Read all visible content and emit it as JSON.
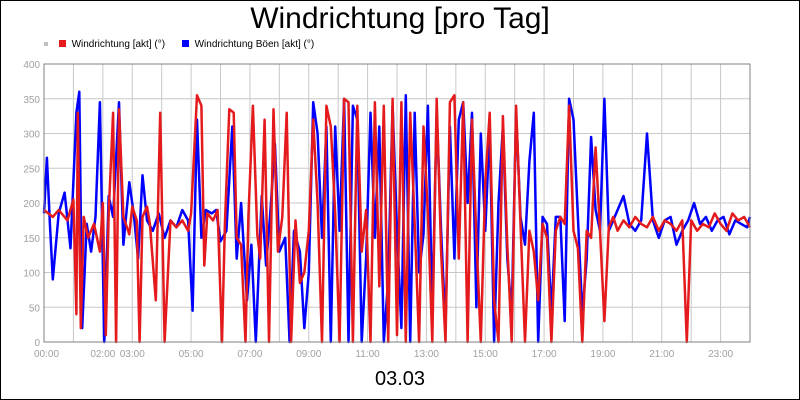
{
  "chart_data": {
    "type": "line",
    "title": "Windrichtung [pro Tag]",
    "xlabel": "03.03",
    "ylabel": "",
    "ylim": [
      0,
      400
    ],
    "yticks": [
      0,
      50,
      100,
      150,
      200,
      250,
      300,
      350,
      400
    ],
    "xlim": [
      "00:00",
      "24:00"
    ],
    "xtick_labels": [
      "00:00",
      "02:00",
      "03:00",
      "05:00",
      "07:00",
      "09:00",
      "11:00",
      "13:00",
      "15:00",
      "17:00",
      "19:00",
      "21:00",
      "23:00"
    ],
    "grid": true,
    "legend_placement": "top-left",
    "series": [
      {
        "name": "Windrichtung [akt] (°)",
        "color": "#e41a1c",
        "values": [
          [
            0.0,
            190
          ],
          [
            0.3,
            180
          ],
          [
            0.5,
            190
          ],
          [
            0.8,
            175
          ],
          [
            1.0,
            205
          ],
          [
            1.1,
            40
          ],
          [
            1.15,
            330
          ],
          [
            1.25,
            20
          ],
          [
            1.35,
            180
          ],
          [
            1.5,
            150
          ],
          [
            1.7,
            170
          ],
          [
            1.9,
            130
          ],
          [
            2.0,
            200
          ],
          [
            2.1,
            10
          ],
          [
            2.2,
            185
          ],
          [
            2.35,
            330
          ],
          [
            2.45,
            0
          ],
          [
            2.55,
            335
          ],
          [
            2.7,
            180
          ],
          [
            2.9,
            155
          ],
          [
            3.0,
            195
          ],
          [
            3.15,
            175
          ],
          [
            3.25,
            0
          ],
          [
            3.35,
            180
          ],
          [
            3.5,
            195
          ],
          [
            3.6,
            170
          ],
          [
            3.8,
            60
          ],
          [
            3.95,
            330
          ],
          [
            4.1,
            0
          ],
          [
            4.3,
            175
          ],
          [
            4.5,
            165
          ],
          [
            4.7,
            175
          ],
          [
            4.9,
            160
          ],
          [
            5.0,
            185
          ],
          [
            5.2,
            355
          ],
          [
            5.35,
            340
          ],
          [
            5.45,
            110
          ],
          [
            5.55,
            185
          ],
          [
            5.75,
            175
          ],
          [
            5.9,
            190
          ],
          [
            6.05,
            0
          ],
          [
            6.15,
            170
          ],
          [
            6.3,
            335
          ],
          [
            6.45,
            330
          ],
          [
            6.55,
            150
          ],
          [
            6.7,
            140
          ],
          [
            6.85,
            0
          ],
          [
            6.95,
            180
          ],
          [
            7.1,
            340
          ],
          [
            7.25,
            155
          ],
          [
            7.35,
            120
          ],
          [
            7.5,
            320
          ],
          [
            7.65,
            0
          ],
          [
            7.8,
            335
          ],
          [
            7.95,
            130
          ],
          [
            8.1,
            180
          ],
          [
            8.25,
            330
          ],
          [
            8.4,
            0
          ],
          [
            8.55,
            175
          ],
          [
            8.7,
            85
          ],
          [
            8.85,
            100
          ],
          [
            9.0,
            160
          ],
          [
            9.15,
            320
          ],
          [
            9.3,
            200
          ],
          [
            9.45,
            0
          ],
          [
            9.6,
            340
          ],
          [
            9.75,
            310
          ],
          [
            9.9,
            185
          ],
          [
            10.05,
            0
          ],
          [
            10.2,
            350
          ],
          [
            10.35,
            345
          ],
          [
            10.5,
            0
          ],
          [
            10.65,
            340
          ],
          [
            10.8,
            130
          ],
          [
            10.95,
            190
          ],
          [
            11.1,
            0
          ],
          [
            11.25,
            345
          ],
          [
            11.4,
            80
          ],
          [
            11.55,
            340
          ],
          [
            11.7,
            0
          ],
          [
            11.85,
            350
          ],
          [
            12.0,
            10
          ],
          [
            12.15,
            345
          ],
          [
            12.3,
            0
          ],
          [
            12.45,
            330
          ],
          [
            12.6,
            170
          ],
          [
            12.75,
            0
          ],
          [
            12.9,
            310
          ],
          [
            13.05,
            185
          ],
          [
            13.2,
            0
          ],
          [
            13.35,
            350
          ],
          [
            13.5,
            130
          ],
          [
            13.65,
            0
          ],
          [
            13.8,
            345
          ],
          [
            13.95,
            355
          ],
          [
            14.1,
            120
          ],
          [
            14.25,
            345
          ],
          [
            14.4,
            0
          ],
          [
            14.55,
            320
          ],
          [
            14.7,
            150
          ],
          [
            14.85,
            0
          ],
          [
            15.0,
            230
          ],
          [
            15.15,
            330
          ],
          [
            15.3,
            60
          ],
          [
            15.45,
            0
          ],
          [
            15.6,
            325
          ],
          [
            15.75,
            140
          ],
          [
            15.9,
            0
          ],
          [
            16.05,
            340
          ],
          [
            16.2,
            170
          ],
          [
            16.35,
            0
          ],
          [
            16.5,
            160
          ],
          [
            16.65,
            130
          ],
          [
            16.8,
            60
          ],
          [
            16.95,
            170
          ],
          [
            17.1,
            150
          ],
          [
            17.25,
            0
          ],
          [
            17.4,
            160
          ],
          [
            17.55,
            180
          ],
          [
            17.7,
            170
          ],
          [
            17.85,
            340
          ],
          [
            18.0,
            160
          ],
          [
            18.15,
            135
          ],
          [
            18.3,
            0
          ],
          [
            18.45,
            160
          ],
          [
            18.6,
            150
          ],
          [
            18.75,
            280
          ],
          [
            18.9,
            160
          ],
          [
            19.05,
            30
          ],
          [
            19.2,
            165
          ],
          [
            19.35,
            180
          ],
          [
            19.5,
            160
          ],
          [
            19.7,
            175
          ],
          [
            19.9,
            165
          ],
          [
            20.1,
            180
          ],
          [
            20.3,
            170
          ],
          [
            20.5,
            165
          ],
          [
            20.7,
            180
          ],
          [
            20.9,
            160
          ],
          [
            21.1,
            175
          ],
          [
            21.3,
            170
          ],
          [
            21.5,
            160
          ],
          [
            21.7,
            175
          ],
          [
            21.85,
            0
          ],
          [
            22.0,
            175
          ],
          [
            22.2,
            160
          ],
          [
            22.4,
            170
          ],
          [
            22.6,
            165
          ],
          [
            22.8,
            185
          ],
          [
            23.0,
            170
          ],
          [
            23.2,
            160
          ],
          [
            23.4,
            185
          ],
          [
            23.6,
            175
          ],
          [
            23.8,
            180
          ],
          [
            24.0,
            165
          ]
        ]
      },
      {
        "name": "Windrichtung Böen [akt] (°)",
        "color": "#0000ff",
        "values": [
          [
            0.0,
            185
          ],
          [
            0.1,
            265
          ],
          [
            0.2,
            170
          ],
          [
            0.3,
            90
          ],
          [
            0.5,
            185
          ],
          [
            0.7,
            215
          ],
          [
            0.9,
            135
          ],
          [
            1.1,
            330
          ],
          [
            1.2,
            360
          ],
          [
            1.3,
            20
          ],
          [
            1.45,
            170
          ],
          [
            1.6,
            130
          ],
          [
            1.75,
            180
          ],
          [
            1.9,
            345
          ],
          [
            2.05,
            0
          ],
          [
            2.2,
            210
          ],
          [
            2.35,
            180
          ],
          [
            2.55,
            345
          ],
          [
            2.7,
            140
          ],
          [
            2.9,
            230
          ],
          [
            3.05,
            185
          ],
          [
            3.2,
            120
          ],
          [
            3.35,
            240
          ],
          [
            3.5,
            175
          ],
          [
            3.7,
            160
          ],
          [
            3.9,
            185
          ],
          [
            4.1,
            150
          ],
          [
            4.3,
            175
          ],
          [
            4.5,
            165
          ],
          [
            4.7,
            190
          ],
          [
            4.9,
            175
          ],
          [
            5.05,
            45
          ],
          [
            5.2,
            320
          ],
          [
            5.35,
            150
          ],
          [
            5.5,
            190
          ],
          [
            5.7,
            185
          ],
          [
            5.85,
            190
          ],
          [
            6.0,
            145
          ],
          [
            6.2,
            160
          ],
          [
            6.4,
            310
          ],
          [
            6.55,
            120
          ],
          [
            6.7,
            200
          ],
          [
            6.9,
            60
          ],
          [
            7.05,
            140
          ],
          [
            7.2,
            0
          ],
          [
            7.4,
            210
          ],
          [
            7.55,
            110
          ],
          [
            7.7,
            190
          ],
          [
            7.85,
            285
          ],
          [
            8.0,
            130
          ],
          [
            8.2,
            150
          ],
          [
            8.35,
            0
          ],
          [
            8.5,
            160
          ],
          [
            8.7,
            130
          ],
          [
            8.85,
            20
          ],
          [
            9.0,
            100
          ],
          [
            9.15,
            345
          ],
          [
            9.3,
            300
          ],
          [
            9.45,
            150
          ],
          [
            9.6,
            310
          ],
          [
            9.75,
            0
          ],
          [
            9.9,
            310
          ],
          [
            10.05,
            160
          ],
          [
            10.2,
            350
          ],
          [
            10.35,
            0
          ],
          [
            10.5,
            340
          ],
          [
            10.65,
            320
          ],
          [
            10.8,
            0
          ],
          [
            10.95,
            120
          ],
          [
            11.1,
            330
          ],
          [
            11.25,
            150
          ],
          [
            11.4,
            310
          ],
          [
            11.55,
            0
          ],
          [
            11.7,
            90
          ],
          [
            11.85,
            340
          ],
          [
            12.0,
            160
          ],
          [
            12.15,
            20
          ],
          [
            12.3,
            355
          ],
          [
            12.45,
            0
          ],
          [
            12.6,
            330
          ],
          [
            12.75,
            100
          ],
          [
            12.9,
            155
          ],
          [
            13.05,
            340
          ],
          [
            13.2,
            40
          ],
          [
            13.35,
            330
          ],
          [
            13.5,
            160
          ],
          [
            13.65,
            20
          ],
          [
            13.8,
            310
          ],
          [
            13.95,
            120
          ],
          [
            14.1,
            320
          ],
          [
            14.25,
            345
          ],
          [
            14.4,
            200
          ],
          [
            14.55,
            330
          ],
          [
            14.7,
            50
          ],
          [
            14.85,
            300
          ],
          [
            15.0,
            160
          ],
          [
            15.15,
            310
          ],
          [
            15.3,
            0
          ],
          [
            15.45,
            200
          ],
          [
            15.6,
            310
          ],
          [
            15.75,
            120
          ],
          [
            15.9,
            40
          ],
          [
            16.05,
            330
          ],
          [
            16.2,
            180
          ],
          [
            16.35,
            140
          ],
          [
            16.5,
            260
          ],
          [
            16.65,
            330
          ],
          [
            16.8,
            0
          ],
          [
            16.95,
            180
          ],
          [
            17.1,
            170
          ],
          [
            17.25,
            40
          ],
          [
            17.4,
            180
          ],
          [
            17.55,
            180
          ],
          [
            17.7,
            30
          ],
          [
            17.85,
            350
          ],
          [
            18.0,
            320
          ],
          [
            18.15,
            180
          ],
          [
            18.3,
            40
          ],
          [
            18.45,
            120
          ],
          [
            18.6,
            295
          ],
          [
            18.75,
            190
          ],
          [
            18.9,
            160
          ],
          [
            19.05,
            350
          ],
          [
            19.2,
            160
          ],
          [
            19.35,
            175
          ],
          [
            19.5,
            190
          ],
          [
            19.7,
            210
          ],
          [
            19.9,
            170
          ],
          [
            20.1,
            160
          ],
          [
            20.3,
            175
          ],
          [
            20.5,
            300
          ],
          [
            20.7,
            175
          ],
          [
            20.9,
            150
          ],
          [
            21.1,
            175
          ],
          [
            21.3,
            180
          ],
          [
            21.5,
            140
          ],
          [
            21.7,
            160
          ],
          [
            21.9,
            175
          ],
          [
            22.1,
            200
          ],
          [
            22.3,
            170
          ],
          [
            22.5,
            180
          ],
          [
            22.7,
            160
          ],
          [
            22.9,
            175
          ],
          [
            23.1,
            180
          ],
          [
            23.3,
            155
          ],
          [
            23.5,
            175
          ],
          [
            23.7,
            170
          ],
          [
            23.9,
            165
          ],
          [
            24.0,
            180
          ]
        ]
      }
    ]
  }
}
